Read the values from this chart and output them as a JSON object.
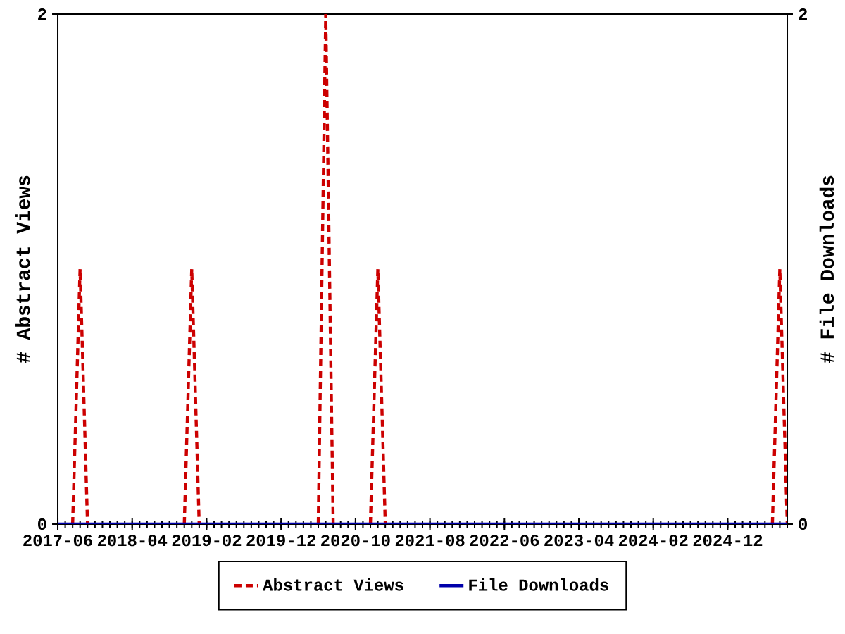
{
  "chart_data": {
    "type": "line",
    "ylabel": "# Abstract Views",
    "y2label": "# File Downloads",
    "x": [
      "2017-06",
      "2017-07",
      "2017-08",
      "2017-09",
      "2017-10",
      "2017-11",
      "2017-12",
      "2018-01",
      "2018-02",
      "2018-03",
      "2018-04",
      "2018-05",
      "2018-06",
      "2018-07",
      "2018-08",
      "2018-09",
      "2018-10",
      "2018-11",
      "2018-12",
      "2019-01",
      "2019-02",
      "2019-03",
      "2019-04",
      "2019-05",
      "2019-06",
      "2019-07",
      "2019-08",
      "2019-09",
      "2019-10",
      "2019-11",
      "2019-12",
      "2020-01",
      "2020-02",
      "2020-03",
      "2020-04",
      "2020-05",
      "2020-06",
      "2020-07",
      "2020-08",
      "2020-09",
      "2020-10",
      "2020-11",
      "2020-12",
      "2021-01",
      "2021-02",
      "2021-03",
      "2021-04",
      "2021-05",
      "2021-06",
      "2021-07",
      "2021-08",
      "2021-09",
      "2021-10",
      "2021-11",
      "2021-12",
      "2022-01",
      "2022-02",
      "2022-03",
      "2022-04",
      "2022-05",
      "2022-06",
      "2022-07",
      "2022-08",
      "2022-09",
      "2022-10",
      "2022-11",
      "2022-12",
      "2023-01",
      "2023-02",
      "2023-03",
      "2023-04",
      "2023-05",
      "2023-06",
      "2023-07",
      "2023-08",
      "2023-09",
      "2023-10",
      "2023-11",
      "2023-12",
      "2024-01",
      "2024-02",
      "2024-03",
      "2024-04",
      "2024-05",
      "2024-06",
      "2024-07",
      "2024-08",
      "2024-09",
      "2024-10",
      "2024-11",
      "2024-12",
      "2025-01",
      "2025-02",
      "2025-03",
      "2025-04",
      "2025-05",
      "2025-06",
      "2025-07",
      "2025-08"
    ],
    "series": [
      {
        "name": "Abstract Views",
        "color": "#cc0000",
        "line_style": "dashed",
        "values": [
          null,
          null,
          0,
          1,
          0,
          null,
          null,
          null,
          null,
          null,
          null,
          null,
          null,
          null,
          null,
          null,
          null,
          0,
          1,
          0,
          null,
          null,
          null,
          null,
          null,
          null,
          null,
          null,
          null,
          null,
          null,
          null,
          null,
          null,
          null,
          0,
          2,
          0,
          null,
          null,
          null,
          null,
          0,
          1,
          0,
          null,
          null,
          null,
          null,
          null,
          null,
          null,
          null,
          null,
          null,
          null,
          null,
          null,
          null,
          null,
          null,
          null,
          null,
          null,
          null,
          null,
          null,
          null,
          null,
          null,
          null,
          null,
          null,
          null,
          null,
          null,
          null,
          null,
          null,
          null,
          null,
          null,
          null,
          null,
          null,
          null,
          null,
          null,
          null,
          null,
          null,
          null,
          null,
          null,
          null,
          null,
          0,
          1,
          0
        ]
      },
      {
        "name": "File Downloads",
        "color": "#0000aa",
        "line_style": "solid",
        "axis": "y2",
        "values": [
          0,
          0,
          0,
          0,
          0,
          0,
          0,
          0,
          0,
          0,
          0,
          0,
          0,
          0,
          0,
          0,
          0,
          0,
          0,
          0,
          0,
          0,
          0,
          0,
          0,
          0,
          0,
          0,
          0,
          0,
          0,
          0,
          0,
          0,
          0,
          0,
          0,
          0,
          0,
          0,
          0,
          0,
          0,
          0,
          0,
          0,
          0,
          0,
          0,
          0,
          0,
          0,
          0,
          0,
          0,
          0,
          0,
          0,
          0,
          0,
          0,
          0,
          0,
          0,
          0,
          0,
          0,
          0,
          0,
          0,
          0,
          0,
          0,
          0,
          0,
          0,
          0,
          0,
          0,
          0,
          0,
          0,
          0,
          0,
          0,
          0,
          0,
          0,
          0,
          0,
          0,
          0,
          0,
          0,
          0,
          0,
          0,
          0,
          0
        ]
      }
    ],
    "xlim": [
      "2017-06",
      "2025-08"
    ],
    "ylim": [
      0,
      2
    ],
    "y2lim": [
      0,
      2
    ],
    "xticks": [
      "2017-06",
      "2018-04",
      "2019-02",
      "2019-12",
      "2020-10",
      "2021-08",
      "2022-06",
      "2023-04",
      "2024-02",
      "2024-12"
    ],
    "yticks": [
      0,
      2
    ],
    "y2ticks": [
      0,
      2
    ],
    "legend": "bottom"
  }
}
